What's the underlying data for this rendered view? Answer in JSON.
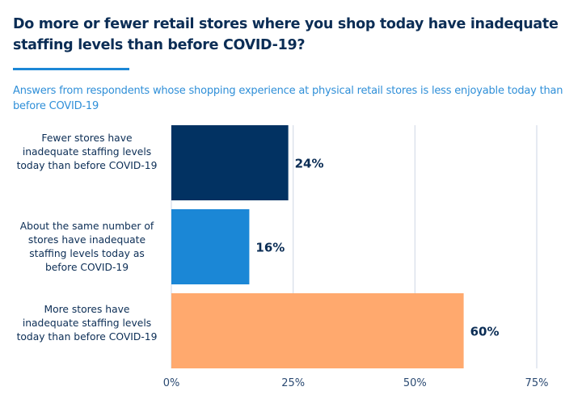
{
  "chart_data": {
    "type": "bar",
    "orientation": "horizontal",
    "title": "Do more or fewer retail stores where you shop today have inadequate staffing levels than before COVID-19?",
    "subtitle": "Answers from respondents whose shopping experience at physical retail stores is less enjoyable today than before COVID-19",
    "categories": [
      "Fewer stores have inadequate staffing levels today than before COVID-19",
      "About the same number of stores have inadequate staffing levels today as before COVID-19",
      "More stores have inadequate staffing levels today than before COVID-19"
    ],
    "values": [
      24,
      16,
      60
    ],
    "data_labels": [
      "24%",
      "16%",
      "60%"
    ],
    "colors": [
      "#023262",
      "#1b87d6",
      "#ffa96e"
    ],
    "xlim": [
      0,
      75
    ],
    "xticks": [
      0,
      25,
      50,
      75
    ],
    "xtick_labels": [
      "0%",
      "25%",
      "50%",
      "75%"
    ],
    "grid": "vertical",
    "legend": "none"
  }
}
